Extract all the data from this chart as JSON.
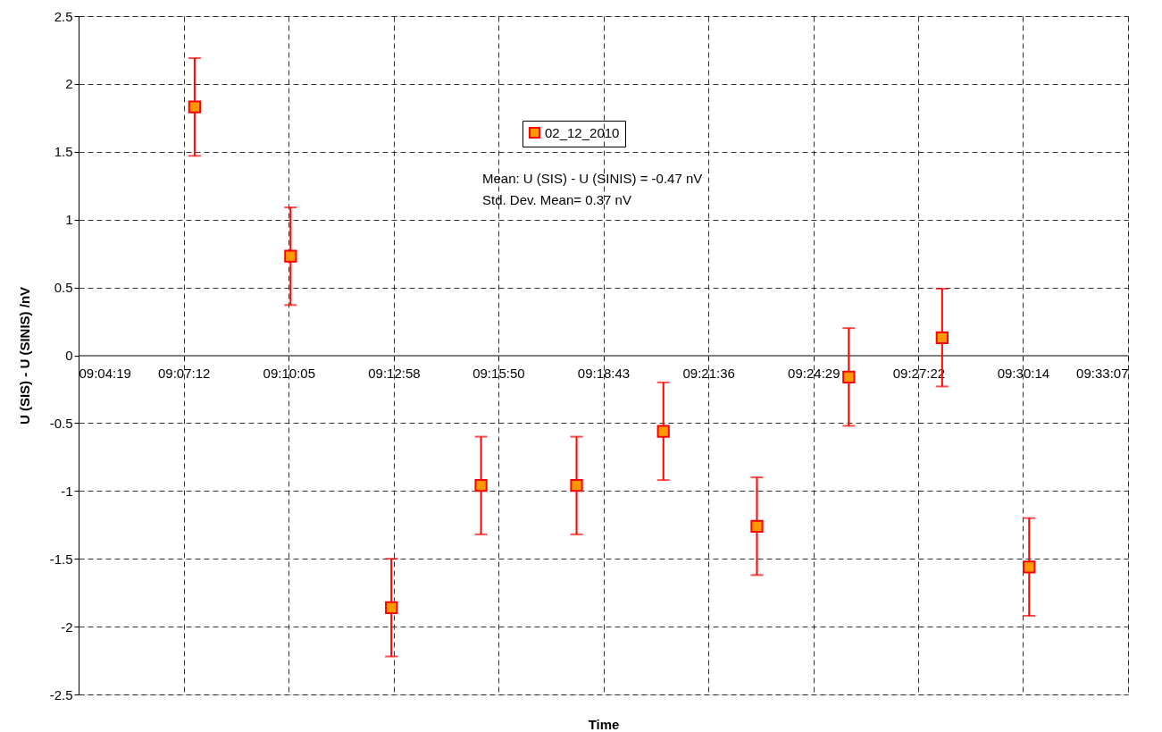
{
  "chart_data": {
    "type": "scatter",
    "xlabel": "Time",
    "ylabel": "U (SIS) - U (SINIS) /nV",
    "x": [
      9.125,
      9.1689,
      9.215,
      9.256,
      9.2997,
      9.3394,
      9.3822,
      9.4242,
      9.4669,
      9.5067
    ],
    "series": [
      {
        "name": "02_12_2010",
        "color": "#ff9900",
        "values": [
          1.83,
          0.73,
          -1.86,
          -0.96,
          -0.96,
          -0.56,
          -1.26,
          -0.16,
          0.13,
          -1.56
        ],
        "errors": [
          0.36,
          0.36,
          0.36,
          0.36,
          0.36,
          0.36,
          0.36,
          0.36,
          0.36,
          0.36
        ]
      }
    ],
    "xlim": [
      9.07194,
      9.55194
    ],
    "xticks": [
      {
        "value": 9.07194,
        "label": "09:04:19"
      },
      {
        "value": 9.12,
        "label": "09:07:12"
      },
      {
        "value": 9.16806,
        "label": "09:10:05"
      },
      {
        "value": 9.21611,
        "label": "09:12:58"
      },
      {
        "value": 9.26389,
        "label": "09:15:50"
      },
      {
        "value": 9.31194,
        "label": "09:18:43"
      },
      {
        "value": 9.36,
        "label": "09:21:36"
      },
      {
        "value": 9.40806,
        "label": "09:24:29"
      },
      {
        "value": 9.45611,
        "label": "09:27:22"
      },
      {
        "value": 9.50389,
        "label": "09:30:14"
      },
      {
        "value": 9.55194,
        "label": "09:33:07"
      }
    ],
    "ylim": [
      -2.5,
      2.5
    ],
    "yticks": [
      -2.5,
      -2,
      -1.5,
      -1,
      -0.5,
      0,
      0.5,
      1,
      1.5,
      2,
      2.5
    ],
    "annotations": [
      "Mean: U (SIS) - U (SINIS) = -0.47 nV",
      "Std. Dev. Mean= 0.37 nV"
    ],
    "grid": true,
    "legend": "top",
    "marker": "square"
  }
}
